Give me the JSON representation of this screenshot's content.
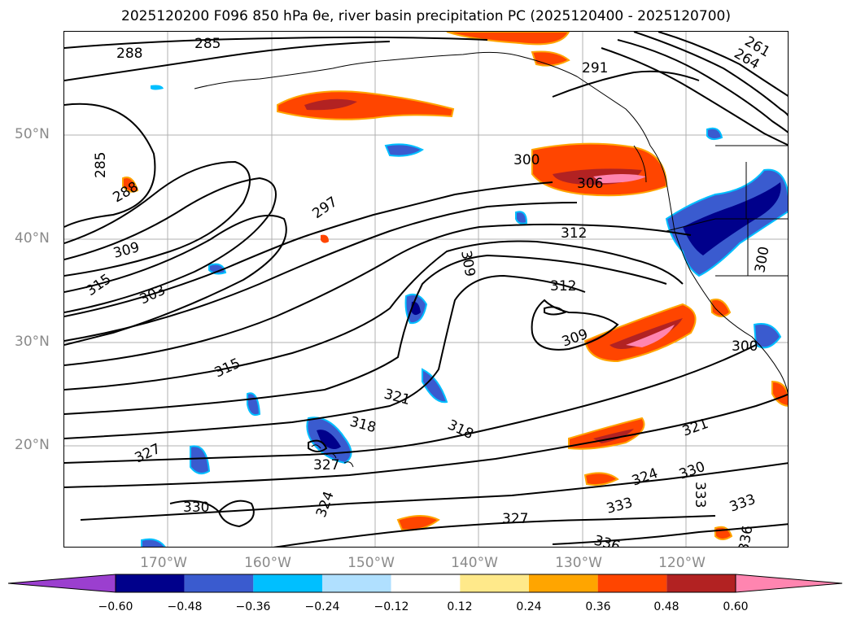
{
  "title": "2025120200 F096 850 hPa θe, river basin precipitation PC (2025120400 - 2025120700)",
  "longitude_labels": [
    "170°W",
    "160°W",
    "150°W",
    "140°W",
    "130°W",
    "120°W"
  ],
  "latitude_labels": [
    "50°N",
    "40°N",
    "30°N",
    "20°N"
  ],
  "contour_labels": [
    "288",
    "285",
    "285",
    "288",
    "309",
    "315",
    "303",
    "297",
    "312",
    "309",
    "312",
    "300",
    "306",
    "291",
    "264",
    "261",
    "315",
    "321",
    "318",
    "327",
    "327",
    "324",
    "330",
    "309",
    "318",
    "321",
    "330",
    "333",
    "324",
    "333",
    "336",
    "327",
    "336",
    "333",
    "300",
    "300"
  ],
  "colorbar": {
    "ticks": [
      "−0.60",
      "−0.48",
      "−0.36",
      "−0.24",
      "−0.12",
      "0.12",
      "0.24",
      "0.36",
      "0.48",
      "0.60"
    ],
    "colors": [
      "#9b3fcf",
      "#00008b",
      "#3a5bcf",
      "#00bfff",
      "#b0e0ff",
      "#ffffff",
      "#ffe98a",
      "#ffa500",
      "#ff4500",
      "#b22222",
      "#ff85b0"
    ]
  }
}
